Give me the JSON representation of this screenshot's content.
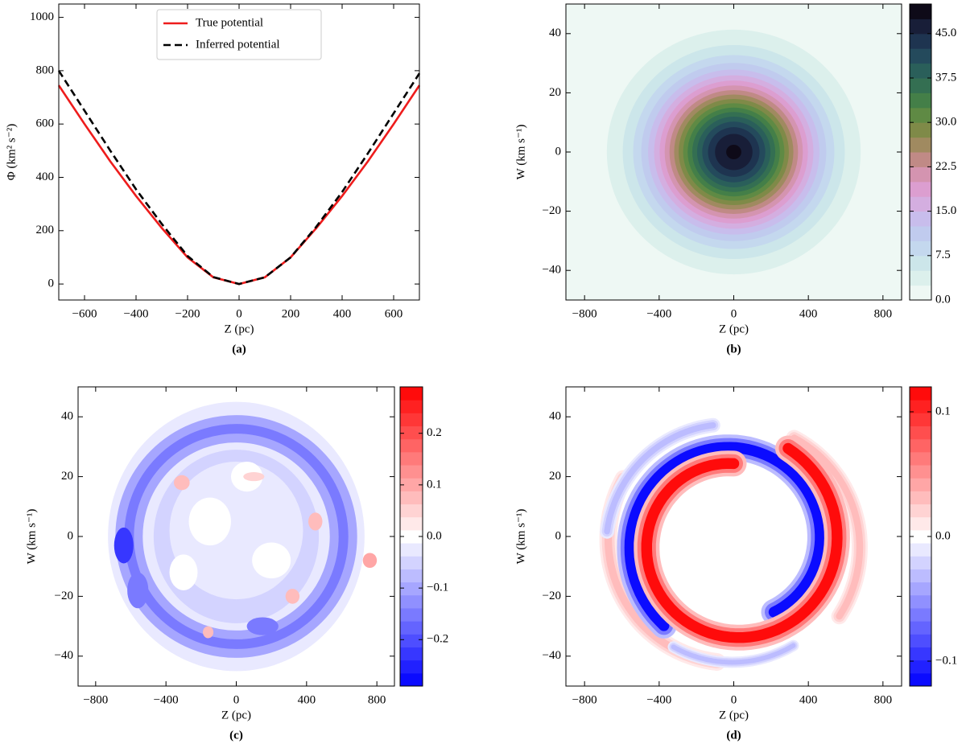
{
  "chart_data": [
    {
      "type": "line",
      "caption": "(a)",
      "xlabel": "Z (pc)",
      "ylabel": "Φ (km² s⁻²)",
      "x": [
        -700,
        -600,
        -500,
        -400,
        -300,
        -200,
        -100,
        0,
        100,
        200,
        300,
        400,
        500,
        600,
        700
      ],
      "series": [
        {
          "name": "True potential",
          "color": "#ee1c1c",
          "dashed": false,
          "values": [
            745,
            600,
            460,
            330,
            210,
            100,
            25,
            0,
            25,
            100,
            210,
            330,
            460,
            600,
            745
          ]
        },
        {
          "name": "Inferred potential",
          "color": "#000000",
          "dashed": true,
          "values": [
            800,
            650,
            500,
            355,
            225,
            105,
            26,
            0,
            25,
            100,
            215,
            345,
            490,
            640,
            790
          ]
        }
      ],
      "xlim": [
        -700,
        700
      ],
      "xticks": [
        {
          "value": -600,
          "label": "−600"
        },
        {
          "value": -400,
          "label": "−400"
        },
        {
          "value": -200,
          "label": "−200"
        },
        0,
        200,
        400,
        600
      ],
      "ylim": [
        -60,
        1050
      ],
      "yticks": [
        0,
        200,
        400,
        600,
        800,
        1000
      ],
      "legend": "upper center"
    },
    {
      "type": "contour",
      "caption": "(b)",
      "xlabel": "Z (pc)",
      "ylabel": "W (km s⁻¹)",
      "xlim": [
        -900,
        900
      ],
      "xticks": [
        {
          "value": -800,
          "label": "−800"
        },
        {
          "value": -400,
          "label": "−400"
        },
        0,
        400,
        800
      ],
      "ylim": [
        -50,
        50
      ],
      "yticks": [
        {
          "value": -40,
          "label": "−40"
        },
        {
          "value": -20,
          "label": "−20"
        },
        0,
        20,
        40
      ],
      "clim": [
        0,
        50
      ],
      "cticks": [
        {
          "value": 0,
          "label": "0.0"
        },
        7.5,
        {
          "value": 15,
          "label": "15.0"
        },
        22.5,
        {
          "value": 30,
          "label": "30.0"
        },
        37.5,
        {
          "value": 45,
          "label": "45.0"
        }
      ],
      "colors": [
        "#eef8f4",
        "#dcf0ec",
        "#cce6ea",
        "#c4d8ee",
        "#c0cbee",
        "#c8bdec",
        "#d4aee0",
        "#dc9ed0",
        "#d494b0",
        "#c08a86",
        "#a08a60",
        "#7f8a48",
        "#5f8a44",
        "#447f48",
        "#346f52",
        "#2a5f5a",
        "#244a5c",
        "#1e3450",
        "#181e38",
        "#0e0a18"
      ]
    },
    {
      "type": "contour",
      "caption": "(c)",
      "xlabel": "Z (pc)",
      "ylabel": "W (km s⁻¹)",
      "xlim": [
        -900,
        900
      ],
      "xticks": [
        {
          "value": -800,
          "label": "−800"
        },
        {
          "value": -400,
          "label": "−400"
        },
        0,
        400,
        800
      ],
      "ylim": [
        -50,
        50
      ],
      "yticks": [
        {
          "value": -40,
          "label": "−40"
        },
        {
          "value": -20,
          "label": "−20"
        },
        0,
        20,
        40
      ],
      "clim": [
        -0.29,
        0.29
      ],
      "cticks": [
        {
          "value": -0.2,
          "label": "−0.2"
        },
        {
          "value": -0.1,
          "label": "−0.1"
        },
        {
          "value": 0,
          "label": "0.0"
        },
        0.1,
        0.2
      ],
      "colormap": "bwr"
    },
    {
      "type": "contour",
      "caption": "(d)",
      "xlabel": "Z (pc)",
      "ylabel": "W (km s⁻¹)",
      "xlim": [
        -900,
        900
      ],
      "xticks": [
        {
          "value": -800,
          "label": "−800"
        },
        {
          "value": -400,
          "label": "−400"
        },
        0,
        400,
        800
      ],
      "ylim": [
        -50,
        50
      ],
      "yticks": [
        {
          "value": -40,
          "label": "−40"
        },
        {
          "value": -20,
          "label": "−20"
        },
        0,
        20,
        40
      ],
      "clim": [
        -0.12,
        0.12
      ],
      "cticks": [
        {
          "value": -0.1,
          "label": "−0.1"
        },
        {
          "value": 0,
          "label": "0.0"
        },
        0.1
      ],
      "colormap": "bwr"
    }
  ]
}
